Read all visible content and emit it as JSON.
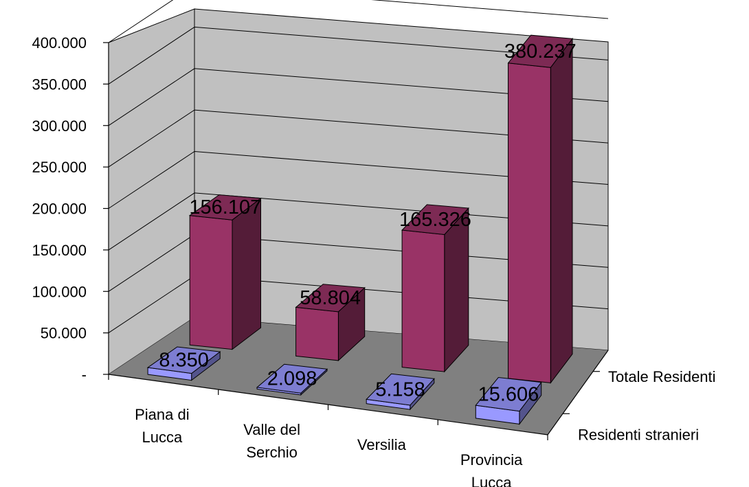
{
  "chart_data": {
    "type": "bar",
    "title": "",
    "xlabel": "",
    "ylabel": "",
    "ylim": [
      0,
      400000
    ],
    "y_ticks": [
      {
        "value": 0,
        "label": "-"
      },
      {
        "value": 50000,
        "label": "50.000"
      },
      {
        "value": 100000,
        "label": "100.000"
      },
      {
        "value": 150000,
        "label": "150.000"
      },
      {
        "value": 200000,
        "label": "200.000"
      },
      {
        "value": 250000,
        "label": "250.000"
      },
      {
        "value": 300000,
        "label": "300.000"
      },
      {
        "value": 350000,
        "label": "350.000"
      },
      {
        "value": 400000,
        "label": "400.000"
      }
    ],
    "categories": [
      [
        "Piana di",
        "Lucca"
      ],
      [
        "Valle del",
        "Serchio"
      ],
      [
        "Versilia"
      ],
      [
        "Provincia",
        "Lucca"
      ]
    ],
    "series": [
      {
        "name": "Residenti stranieri",
        "values": [
          8350,
          2098,
          5158,
          15606
        ],
        "labels": [
          "8.350",
          "2.098",
          "5.158",
          "15.606"
        ],
        "color": "#9999ff"
      },
      {
        "name": "Totale Residenti",
        "values": [
          156107,
          58804,
          165326,
          380237
        ],
        "labels": [
          "156.107",
          "58.804",
          "165.326",
          "380.237"
        ],
        "color": "#993366"
      }
    ],
    "grid": true,
    "style": "3d-column",
    "colors": {
      "back_wall": "#c0c0c0",
      "floor": "#808080"
    }
  }
}
